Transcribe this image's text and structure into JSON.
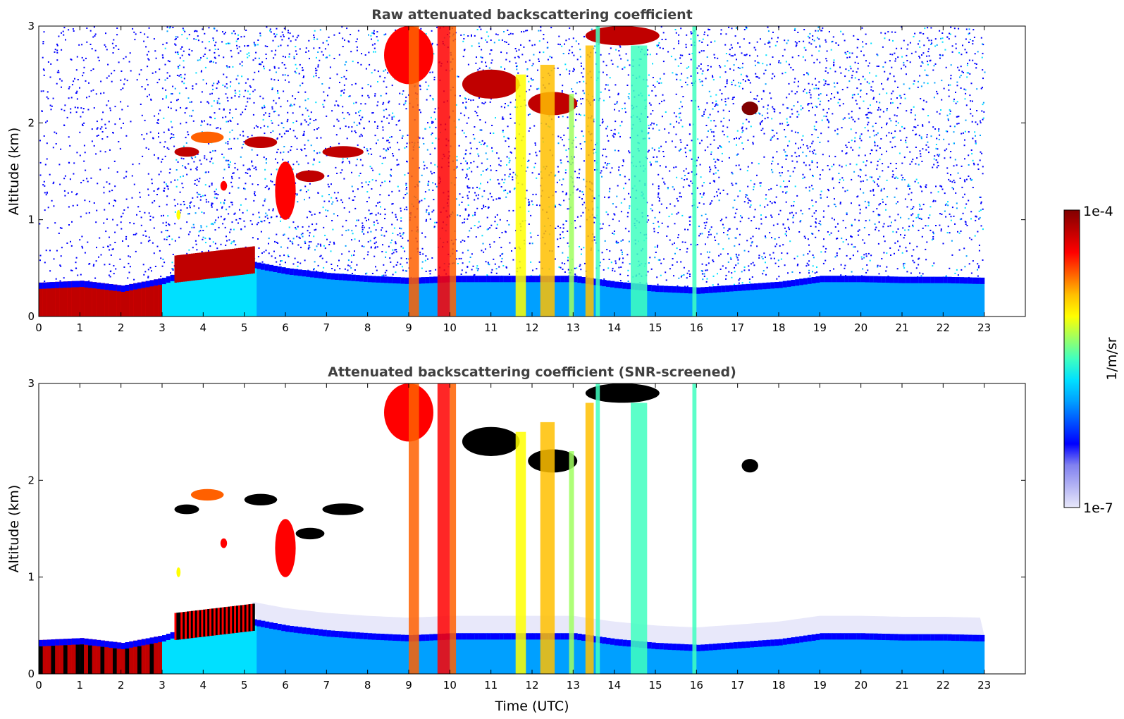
{
  "chart_data": [
    {
      "type": "heatmap",
      "title": "Raw attenuated backscattering coefficient",
      "xlabel": "",
      "ylabel": "Altitude (km)",
      "xlim": [
        0,
        24
      ],
      "ylim": [
        0,
        3
      ],
      "xticks": [
        0,
        1,
        2,
        3,
        4,
        5,
        6,
        7,
        8,
        9,
        10,
        11,
        12,
        13,
        14,
        15,
        16,
        17,
        18,
        19,
        20,
        21,
        22,
        23
      ],
      "yticks": [
        0,
        1,
        2,
        3
      ],
      "data_extent_hours": [
        0,
        23
      ],
      "colorscale": "jet",
      "background_noise": "scattered blue pixels above boundary layer",
      "boundary_layer_top_km": [
        {
          "x": 0,
          "y": 0.35
        },
        {
          "x": 1,
          "y": 0.37
        },
        {
          "x": 2,
          "y": 0.32
        },
        {
          "x": 3,
          "y": 0.4
        },
        {
          "x": 4,
          "y": 0.55
        },
        {
          "x": 5,
          "y": 0.58
        },
        {
          "x": 6,
          "y": 0.5
        },
        {
          "x": 7,
          "y": 0.45
        },
        {
          "x": 8,
          "y": 0.42
        },
        {
          "x": 9,
          "y": 0.4
        },
        {
          "x": 10,
          "y": 0.42
        },
        {
          "x": 11,
          "y": 0.42
        },
        {
          "x": 12,
          "y": 0.42
        },
        {
          "x": 13,
          "y": 0.42
        },
        {
          "x": 14,
          "y": 0.36
        },
        {
          "x": 15,
          "y": 0.32
        },
        {
          "x": 16,
          "y": 0.3
        },
        {
          "x": 17,
          "y": 0.33
        },
        {
          "x": 18,
          "y": 0.36
        },
        {
          "x": 19,
          "y": 0.42
        },
        {
          "x": 20,
          "y": 0.42
        },
        {
          "x": 21,
          "y": 0.41
        },
        {
          "x": 22,
          "y": 0.41
        },
        {
          "x": 23,
          "y": 0.4
        }
      ]
    },
    {
      "type": "heatmap",
      "title": "Attenuated backscattering coefficient (SNR-screened)",
      "xlabel": "Time (UTC)",
      "ylabel": "Altitude (km)",
      "xlim": [
        0,
        24
      ],
      "ylim": [
        0,
        3
      ],
      "xticks": [
        0,
        1,
        2,
        3,
        4,
        5,
        6,
        7,
        8,
        9,
        10,
        11,
        12,
        13,
        14,
        15,
        16,
        17,
        18,
        19,
        20,
        21,
        22,
        23
      ],
      "yticks": [
        0,
        1,
        2,
        3
      ],
      "data_extent_hours": [
        0,
        23
      ],
      "colorscale": "jet",
      "background_noise": "none (screened)",
      "boundary_layer_top_km": [
        {
          "x": 0,
          "y": 0.35
        },
        {
          "x": 1,
          "y": 0.37
        },
        {
          "x": 2,
          "y": 0.32
        },
        {
          "x": 3,
          "y": 0.4
        },
        {
          "x": 4,
          "y": 0.55
        },
        {
          "x": 5,
          "y": 0.58
        },
        {
          "x": 6,
          "y": 0.5
        },
        {
          "x": 7,
          "y": 0.45
        },
        {
          "x": 8,
          "y": 0.42
        },
        {
          "x": 9,
          "y": 0.4
        },
        {
          "x": 10,
          "y": 0.42
        },
        {
          "x": 11,
          "y": 0.42
        },
        {
          "x": 12,
          "y": 0.42
        },
        {
          "x": 13,
          "y": 0.42
        },
        {
          "x": 14,
          "y": 0.36
        },
        {
          "x": 15,
          "y": 0.32
        },
        {
          "x": 16,
          "y": 0.3
        },
        {
          "x": 17,
          "y": 0.33
        },
        {
          "x": 18,
          "y": 0.36
        },
        {
          "x": 19,
          "y": 0.42
        },
        {
          "x": 20,
          "y": 0.42
        },
        {
          "x": 21,
          "y": 0.41
        },
        {
          "x": 22,
          "y": 0.41
        },
        {
          "x": 23,
          "y": 0.4
        }
      ]
    }
  ],
  "colorbar": {
    "label": "1/m/sr",
    "max_label": "1e-4",
    "min_label": "1e-7",
    "scale": "log",
    "colors": [
      "#e8e8fa",
      "#b4b4f4",
      "#8080f0",
      "#0000ff",
      "#0050ff",
      "#00a0ff",
      "#00e0ff",
      "#40ffc0",
      "#a0ff60",
      "#ffff00",
      "#ffc000",
      "#ff6000",
      "#ff0000",
      "#c00000",
      "#800000"
    ]
  }
}
